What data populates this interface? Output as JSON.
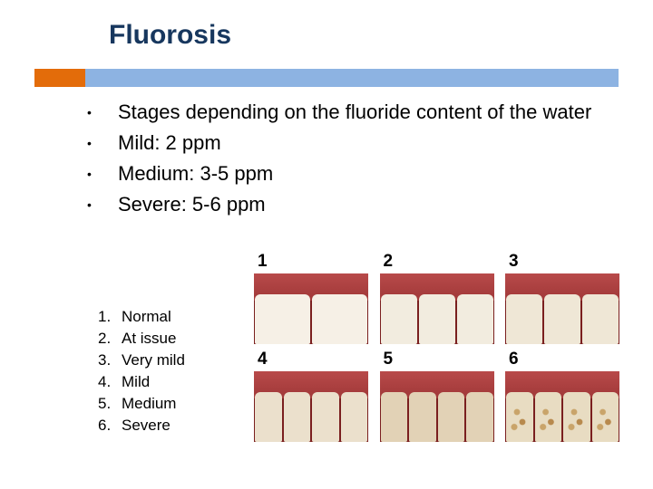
{
  "title": "Fluorosis",
  "colors": {
    "title": "#17375e",
    "accent_orange": "#e36c0a",
    "accent_blue": "#8db3e2",
    "background": "#ffffff",
    "text": "#000000"
  },
  "bullets": [
    "Stages depending on the fluoride content of the water",
    "Mild: 2 ppm",
    "Medium: 3-5 ppm",
    "Severe: 5-6 ppm"
  ],
  "legend": [
    {
      "num": "1.",
      "label": "Normal"
    },
    {
      "num": "2.",
      "label": "At issue"
    },
    {
      "num": "3.",
      "label": "Very mild"
    },
    {
      "num": "4.",
      "label": "Mild"
    },
    {
      "num": "5.",
      "label": "Medium"
    },
    {
      "num": "6.",
      "label": "Severe"
    }
  ],
  "images": {
    "row1": [
      {
        "label": "1",
        "variant": "t-normal"
      },
      {
        "label": "2",
        "variant": "t-issue"
      },
      {
        "label": "3",
        "variant": "t-vmild"
      }
    ],
    "row2": [
      {
        "label": "4",
        "variant": "t-mild"
      },
      {
        "label": "5",
        "variant": "t-medium"
      },
      {
        "label": "6",
        "variant": "t-severe"
      }
    ]
  }
}
